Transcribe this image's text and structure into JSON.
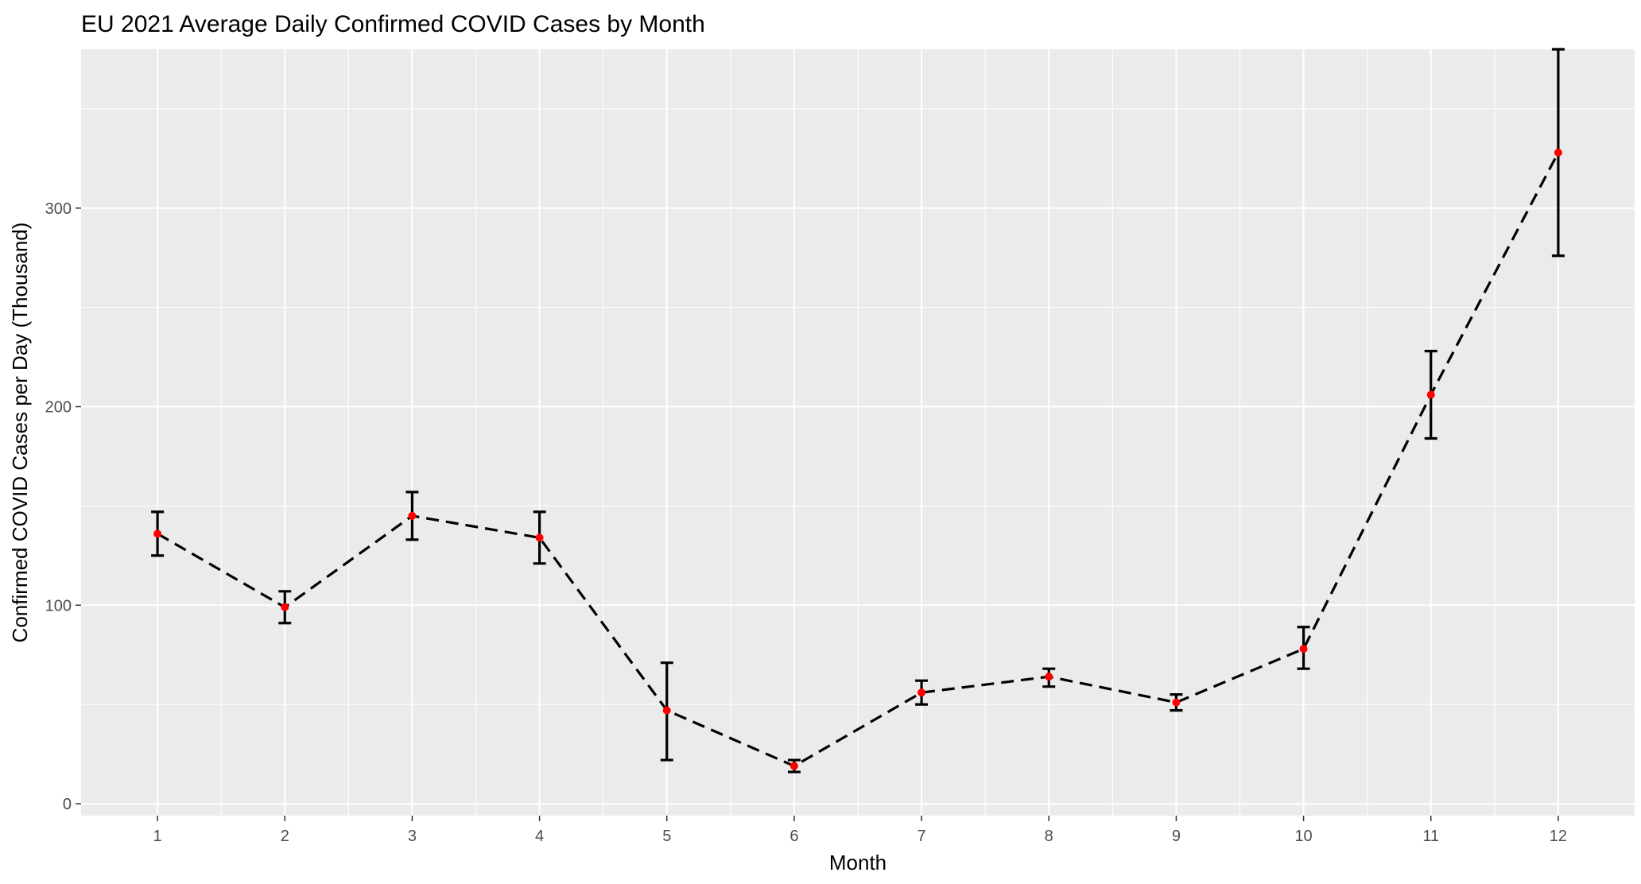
{
  "chart_data": {
    "type": "line",
    "title": "EU 2021 Average Daily Confirmed COVID Cases by Month",
    "xlabel": "Month",
    "ylabel": "Confirmed COVID Cases per Day (Thousand)",
    "x": [
      1,
      2,
      3,
      4,
      5,
      6,
      7,
      8,
      9,
      10,
      11,
      12
    ],
    "values": [
      136,
      99,
      145,
      134,
      47,
      19,
      56,
      64,
      51,
      78,
      206,
      328
    ],
    "error_low": [
      125,
      91,
      133,
      121,
      22,
      16,
      50,
      59,
      47,
      68,
      184,
      276
    ],
    "error_high": [
      147,
      107,
      157,
      147,
      71,
      22,
      62,
      68,
      55,
      89,
      228,
      380
    ],
    "xlim": [
      0.4,
      12.6
    ],
    "ylim": [
      -6,
      380
    ],
    "x_ticks": [
      "1",
      "2",
      "3",
      "4",
      "5",
      "6",
      "7",
      "8",
      "9",
      "10",
      "11",
      "12"
    ],
    "y_ticks": [
      0,
      100,
      200,
      300
    ],
    "y_tick_labels": [
      "0",
      "100",
      "200",
      "300"
    ],
    "grid": true,
    "legend": "none",
    "colors": {
      "panel_background": "#EBEBEB",
      "grid_major": "#FFFFFF",
      "line": "#000000",
      "point": "#FF0000",
      "error_bar": "#000000",
      "tick_label": "#4D4D4D"
    }
  }
}
